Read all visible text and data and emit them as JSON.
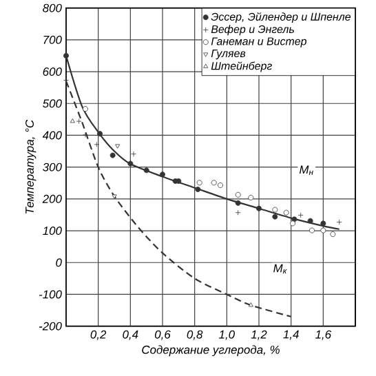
{
  "chart_data": {
    "type": "scatter",
    "xlabel": "Содержание углерода, %",
    "ylabel": "Температура, °C",
    "xlim": [
      0,
      1.8
    ],
    "ylim": [
      -200,
      800
    ],
    "xticks": [
      {
        "value": 0.2,
        "label": "0,2"
      },
      {
        "value": 0.4,
        "label": "0,4"
      },
      {
        "value": 0.6,
        "label": "0,6"
      },
      {
        "value": 0.8,
        "label": "0,8"
      },
      {
        "value": 1.0,
        "label": "1,0"
      },
      {
        "value": 1.2,
        "label": "1,2"
      },
      {
        "value": 1.4,
        "label": "1,4"
      },
      {
        "value": 1.6,
        "label": "1,6"
      },
      {
        "value": 1.8,
        "label": null
      }
    ],
    "yticks": [
      -200,
      -100,
      0,
      100,
      200,
      300,
      400,
      500,
      600,
      700,
      800
    ],
    "grid": true,
    "legend": "top right",
    "series": [
      {
        "name": "Эссер, Эйлендер и Шпенле",
        "color": "#333333",
        "marker": "circle",
        "x": [
          0,
          0.21,
          0.29,
          0.4,
          0.5,
          0.6,
          0.7,
          0.68,
          0.82,
          1.07,
          1.2,
          1.3,
          1.42,
          1.52,
          1.6
        ],
        "values": [
          650,
          405,
          337,
          311,
          290,
          277,
          256,
          256,
          230,
          187,
          170,
          144,
          136,
          131,
          123
        ]
      },
      {
        "name": "Вефер и Энгель",
        "color": "#333333",
        "marker": "cross",
        "x": [
          0,
          0.08,
          0.12,
          0.19,
          0.42,
          1.07,
          1.46,
          1.7
        ],
        "values": [
          573,
          444,
          401,
          371,
          341,
          157,
          149,
          127
        ]
      },
      {
        "name": "Ганеман и Вистер",
        "color": "#333333",
        "marker": "circle-open",
        "x": [
          0.12,
          0.83,
          0.92,
          0.96,
          1.07,
          1.15,
          1.3,
          1.37,
          1.41,
          1.53,
          1.6,
          1.66
        ],
        "values": [
          483,
          251,
          251,
          243,
          213,
          204,
          166,
          157,
          123,
          101,
          101,
          89
        ]
      },
      {
        "name": "Гуляев",
        "color": "#333333",
        "marker": "triangle-down",
        "x": [
          0.32,
          0.3
        ],
        "values": [
          367,
          209
        ]
      },
      {
        "name": "Штейнберг",
        "color": "#333333",
        "marker": "triangle",
        "x": [
          0.04,
          1.15
        ],
        "values": [
          444,
          -134
        ]
      },
      {
        "type": "line",
        "color": "#333333",
        "line_style": "solid",
        "marker": "none",
        "x": [
          0,
          0.1,
          0.2,
          0.3,
          0.4,
          0.6,
          0.8,
          1.0,
          1.2,
          1.4,
          1.6,
          1.7
        ],
        "values": [
          650,
          490,
          410,
          350,
          310,
          270,
          235,
          200,
          170,
          140,
          115,
          105
        ]
      },
      {
        "type": "line",
        "color": "#333333",
        "line_style": "dashed",
        "marker": "none",
        "x": [
          0,
          0.1,
          0.2,
          0.3,
          0.45,
          0.6,
          0.8,
          1.0,
          1.15,
          1.4
        ],
        "values": [
          570,
          440,
          300,
          209,
          110,
          30,
          -50,
          -100,
          -134,
          -170
        ]
      }
    ],
    "annotations": [
      "M$_{н}$",
      "M$_{к}$"
    ]
  }
}
